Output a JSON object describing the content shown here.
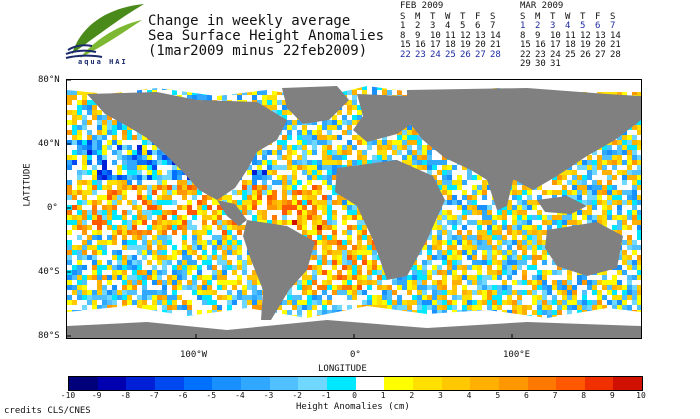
{
  "header": {
    "title_lines": [
      "Change in weekly average",
      "Sea Surface Height Anomalies",
      "(1mar2009 minus 22feb2009)"
    ],
    "logo_text": "aqua HAI"
  },
  "calendars": [
    {
      "title": "FEB 2009",
      "weekdays": [
        "S",
        "M",
        "T",
        "W",
        "T",
        "F",
        "S"
      ],
      "weeks": [
        [
          "1",
          "2",
          "3",
          "4",
          "5",
          "6",
          "7"
        ],
        [
          "8",
          "9",
          "10",
          "11",
          "12",
          "13",
          "14"
        ],
        [
          "15",
          "16",
          "17",
          "18",
          "19",
          "20",
          "21"
        ],
        [
          "22",
          "23",
          "24",
          "25",
          "26",
          "27",
          "28"
        ]
      ],
      "highlighted_week": 3
    },
    {
      "title": "MAR 2009",
      "weekdays": [
        "S",
        "M",
        "T",
        "W",
        "T",
        "F",
        "S"
      ],
      "weeks": [
        [
          "1",
          "2",
          "3",
          "4",
          "5",
          "6",
          "7"
        ],
        [
          "8",
          "9",
          "10",
          "11",
          "12",
          "13",
          "14"
        ],
        [
          "15",
          "16",
          "17",
          "18",
          "19",
          "20",
          "21"
        ],
        [
          "22",
          "23",
          "24",
          "25",
          "26",
          "27",
          "28"
        ],
        [
          "29",
          "30",
          "31",
          "",
          "",
          "",
          ""
        ]
      ],
      "highlighted_week": 0
    }
  ],
  "map": {
    "lat_ticks": [
      "80°N",
      "40°N",
      "0°",
      "40°S",
      "80°S"
    ],
    "lon_ticks": [
      "100°W",
      "0°",
      "100°E"
    ],
    "xlabel": "LONGITUDE",
    "ylabel": "LATITUDE",
    "land_color": "#808080",
    "nodata_color": "#ffffff"
  },
  "colorbar": {
    "ticks": [
      "-10",
      "-9",
      "-8",
      "-7",
      "-6",
      "-5",
      "-4",
      "-3",
      "-2",
      "-1",
      "0",
      "1",
      "2",
      "3",
      "4",
      "5",
      "6",
      "7",
      "8",
      "9",
      "10"
    ],
    "colors": [
      "#00007a",
      "#0000b0",
      "#0020d8",
      "#0048f0",
      "#0070ff",
      "#1890ff",
      "#30a8ff",
      "#50c0ff",
      "#70d8ff",
      "#00e8ff",
      "#ffffff",
      "#ffff00",
      "#ffe000",
      "#ffc800",
      "#ffb000",
      "#ff9800",
      "#ff7800",
      "#ff5800",
      "#f03000",
      "#d01000"
    ],
    "label": "Height Anomalies (cm)"
  },
  "credits": "credits CLS/CNES"
}
